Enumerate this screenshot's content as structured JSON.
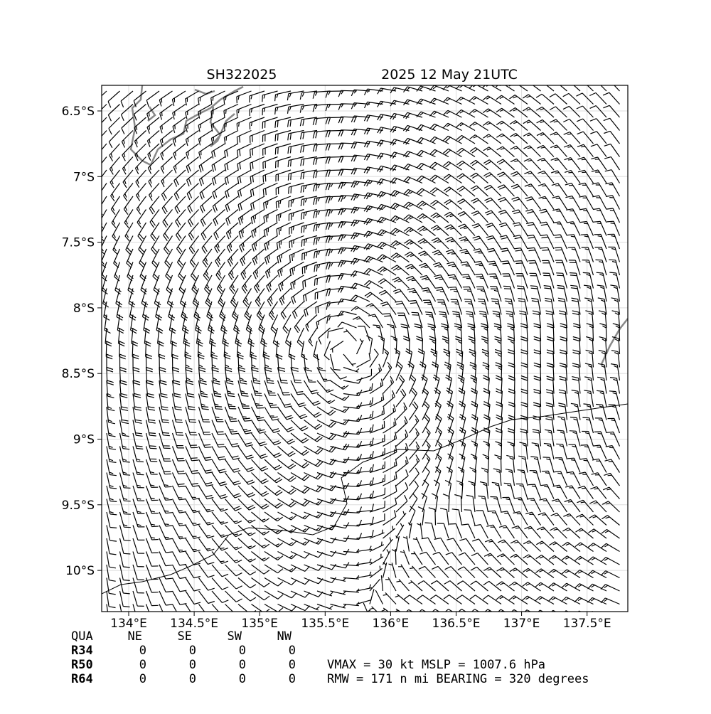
{
  "header": {
    "storm_id": "SH322025",
    "time": "2025 12 May 21UTC"
  },
  "map": {
    "lat_labels": [
      "6.5°S",
      "7°S",
      "7.5°S",
      "8°S",
      "8.5°S",
      "9°S",
      "9.5°S",
      "10°S"
    ],
    "lon_labels": [
      "134°E",
      "134.5°E",
      "135°E",
      "135.5°E",
      "136°E",
      "136.5°E",
      "137°E",
      "137.5°E"
    ]
  },
  "table": {
    "header": [
      "QUA",
      "NE",
      "SE",
      "SW",
      "NW"
    ],
    "rows": [
      [
        "R34",
        "0",
        "0",
        "0",
        "0"
      ],
      [
        "R50",
        "0",
        "0",
        "0",
        "0"
      ],
      [
        "R64",
        "0",
        "0",
        "0",
        "0"
      ]
    ]
  },
  "summary": [
    "VMAX =  30 kt MSLP = 1007.6 hPa",
    "RMW = 171 n mi BEARING = 320 degrees"
  ]
}
